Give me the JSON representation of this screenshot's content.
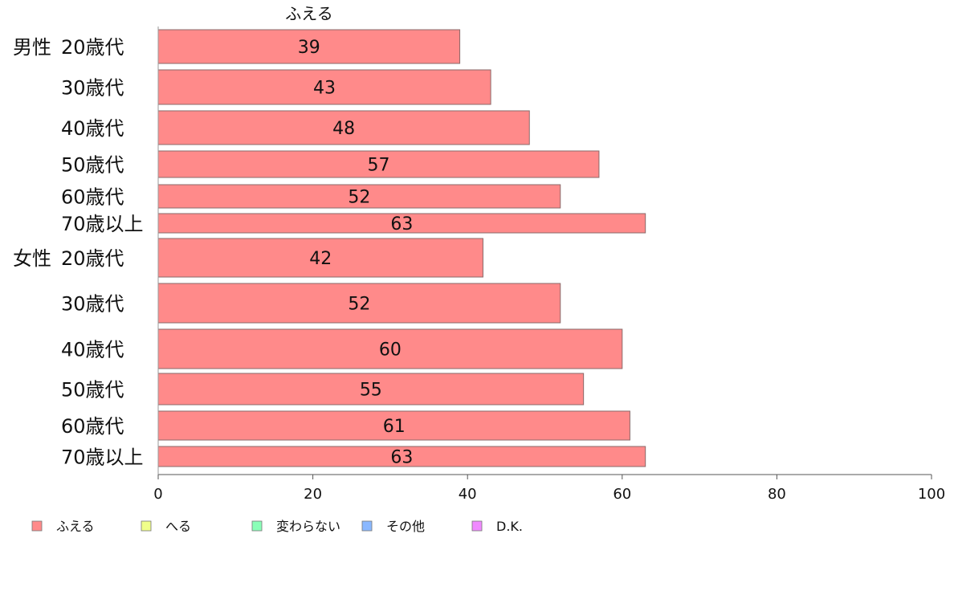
{
  "chart_data": {
    "type": "bar",
    "orientation": "horizontal",
    "series_header": "ふえる",
    "groups": [
      {
        "label": "男性",
        "rows": [
          {
            "label": "20歳代",
            "value": 39
          },
          {
            "label": "30歳代",
            "value": 43
          },
          {
            "label": "40歳代",
            "value": 48
          },
          {
            "label": "50歳代",
            "value": 57
          },
          {
            "label": "60歳代",
            "value": 52
          },
          {
            "label": "70歳以上",
            "value": 63
          }
        ]
      },
      {
        "label": "女性",
        "rows": [
          {
            "label": "20歳代",
            "value": 42
          },
          {
            "label": "30歳代",
            "value": 52
          },
          {
            "label": "40歳代",
            "value": 60
          },
          {
            "label": "50歳代",
            "value": 55
          },
          {
            "label": "60歳代",
            "value": 61
          },
          {
            "label": "70歳以上",
            "value": 63
          }
        ]
      }
    ],
    "xlim": [
      0,
      100
    ],
    "xticks": [
      "0",
      "20",
      "40",
      "60",
      "80",
      "100"
    ],
    "grid": false,
    "legend_position": "bottom-left",
    "legend": [
      {
        "label": "ふえる",
        "color": "#ff8a8a"
      },
      {
        "label": "へる",
        "color": "#f0ff8a"
      },
      {
        "label": "変わらない",
        "color": "#8affb8"
      },
      {
        "label": "その他",
        "color": "#8ab8ff"
      },
      {
        "label": "D.K.",
        "color": "#f08aff"
      }
    ],
    "bar_color": "#ff8a8a"
  }
}
